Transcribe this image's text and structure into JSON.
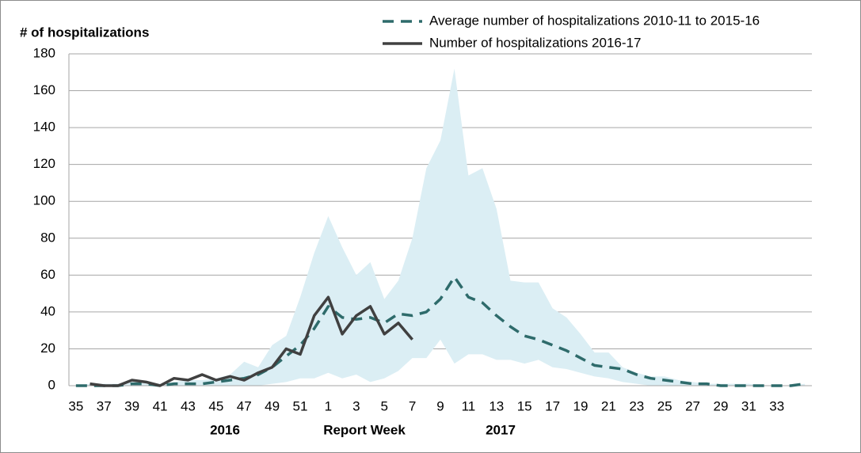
{
  "chart_data": {
    "type": "line",
    "y_axis_title": "# of hospitalizations",
    "x_axis_title": "Report Week",
    "x_group_labels": [
      "2016",
      "2017"
    ],
    "categories": [
      "35",
      null,
      "37",
      null,
      "39",
      null,
      "41",
      null,
      "43",
      null,
      "45",
      null,
      "47",
      null,
      "49",
      null,
      "51",
      null,
      "1",
      null,
      "3",
      null,
      "5",
      null,
      "7",
      null,
      "9",
      null,
      "11",
      null,
      "13",
      null,
      "15",
      null,
      "17",
      null,
      "19",
      null,
      "21",
      null,
      "23",
      null,
      "25",
      null,
      "27",
      null,
      "29",
      null,
      "31",
      null,
      "33",
      null,
      null
    ],
    "ylim": [
      0,
      180
    ],
    "yticks": [
      0,
      20,
      40,
      60,
      80,
      100,
      120,
      140,
      160,
      180
    ],
    "grid": true,
    "legend": "top",
    "band": {
      "color": "#dbeef4",
      "upper": [
        0,
        1,
        1,
        1,
        2,
        2,
        1,
        2,
        3,
        3,
        4,
        6,
        13,
        10,
        22,
        27,
        48,
        72,
        92,
        75,
        60,
        67,
        47,
        57,
        80,
        118,
        133,
        172,
        114,
        118,
        96,
        57,
        56,
        56,
        42,
        37,
        28,
        18,
        18,
        10,
        7,
        5,
        5,
        3,
        2,
        1,
        1,
        1,
        1,
        0,
        0,
        0,
        1
      ],
      "lower": [
        0,
        0,
        0,
        0,
        0,
        0,
        0,
        0,
        0,
        0,
        0,
        0,
        0,
        0,
        1,
        2,
        4,
        4,
        7,
        4,
        6,
        2,
        4,
        8,
        15,
        15,
        25,
        12,
        17,
        17,
        14,
        14,
        12,
        14,
        10,
        9,
        7,
        5,
        4,
        2,
        1,
        0,
        0,
        0,
        0,
        0,
        0,
        0,
        0,
        0,
        0,
        0,
        0
      ]
    },
    "series": [
      {
        "name": "Average number of hospitalizations 2010-11 to 2015-16",
        "color": "#2e6b6b",
        "dashed": true,
        "values": [
          0,
          0,
          0,
          0,
          1,
          1,
          0,
          1,
          1,
          1,
          2,
          3,
          4,
          6,
          10,
          16,
          22,
          31,
          43,
          37,
          36,
          37,
          34,
          39,
          38,
          40,
          47,
          59,
          48,
          45,
          38,
          32,
          27,
          25,
          22,
          19,
          15,
          11,
          10,
          9,
          6,
          4,
          3,
          2,
          1,
          1,
          0,
          0,
          0,
          0,
          0,
          0,
          1
        ]
      },
      {
        "name": "Number of hospitalizations 2016-17",
        "color": "#404040",
        "dashed": false,
        "values": [
          null,
          1,
          0,
          0,
          3,
          2,
          0,
          4,
          3,
          6,
          3,
          5,
          3,
          7,
          10,
          20,
          17,
          38,
          48,
          28,
          38,
          43,
          28,
          34,
          25,
          null,
          null,
          null,
          null,
          null,
          null,
          null,
          null,
          null,
          null,
          null,
          null,
          null,
          null,
          null,
          null,
          null,
          null,
          null,
          null,
          null,
          null,
          null,
          null,
          null,
          null,
          null,
          null
        ]
      }
    ]
  }
}
